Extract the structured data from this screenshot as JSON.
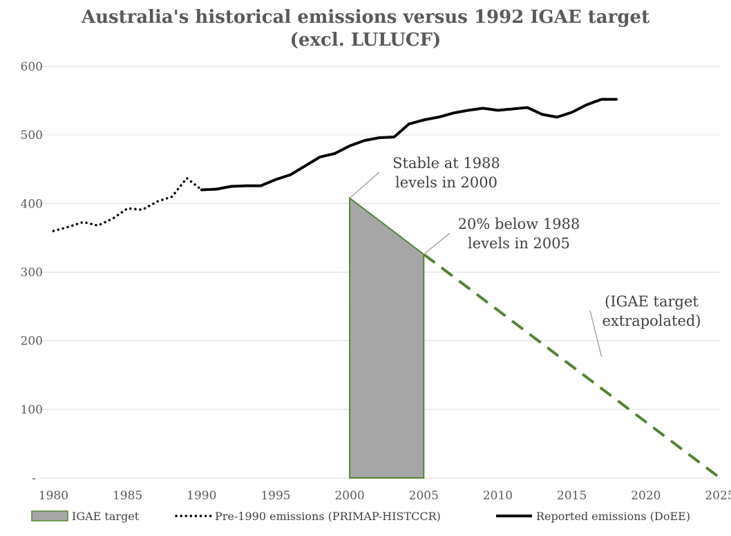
{
  "chart_data": {
    "type": "line",
    "title_lines": [
      "Australia's historical emissions versus 1992 IGAE target",
      "(excl. LULUCF)"
    ],
    "xlim": [
      1979,
      2025
    ],
    "ylim": [
      0,
      600
    ],
    "x_ticks": [
      1980,
      1985,
      1990,
      1995,
      2000,
      2005,
      2010,
      2015,
      2020,
      2025
    ],
    "y_ticks": [
      600,
      500,
      400,
      300,
      200,
      100
    ],
    "y_zero_label": "-",
    "grid": "horizontal",
    "series": [
      {
        "name": "Pre-1990 emissions (PRIMAP-HISTCCR)",
        "style": "dotted",
        "color": "#000000",
        "points": [
          [
            1980,
            360
          ],
          [
            1981,
            366
          ],
          [
            1982,
            373
          ],
          [
            1983,
            368
          ],
          [
            1984,
            378
          ],
          [
            1985,
            393
          ],
          [
            1986,
            391
          ],
          [
            1987,
            403
          ],
          [
            1988,
            410
          ],
          [
            1989,
            437
          ],
          [
            1990,
            420
          ]
        ]
      },
      {
        "name": "Reported emissions (DoEE)",
        "style": "solid",
        "color": "#000000",
        "points": [
          [
            1990,
            420
          ],
          [
            1991,
            421
          ],
          [
            1992,
            425
          ],
          [
            1993,
            426
          ],
          [
            1994,
            426
          ],
          [
            1995,
            435
          ],
          [
            1996,
            442
          ],
          [
            1997,
            455
          ],
          [
            1998,
            468
          ],
          [
            1999,
            473
          ],
          [
            2000,
            484
          ],
          [
            2001,
            492
          ],
          [
            2002,
            496
          ],
          [
            2003,
            497
          ],
          [
            2004,
            516
          ],
          [
            2005,
            522
          ],
          [
            2006,
            526
          ],
          [
            2007,
            532
          ],
          [
            2008,
            536
          ],
          [
            2009,
            539
          ],
          [
            2010,
            536
          ],
          [
            2011,
            538
          ],
          [
            2012,
            540
          ],
          [
            2013,
            530
          ],
          [
            2014,
            526
          ],
          [
            2015,
            533
          ],
          [
            2016,
            544
          ],
          [
            2017,
            552
          ],
          [
            2018,
            552
          ]
        ]
      },
      {
        "name": "IGAE target",
        "style": "area",
        "color": "#a6a6a6",
        "stroke": "#548235",
        "points": [
          [
            2000,
            408
          ],
          [
            2005,
            326
          ]
        ]
      },
      {
        "name": "IGAE target extrapolated",
        "style": "dashed",
        "color": "#548235",
        "points": [
          [
            2005,
            326
          ],
          [
            2025,
            0
          ]
        ]
      }
    ],
    "annotations": [
      {
        "lines": [
          "Stable at 1988",
          "levels in 2000"
        ],
        "point": [
          2000,
          408
        ]
      },
      {
        "lines": [
          "20% below 1988",
          "levels in 2005"
        ],
        "point": [
          2005,
          326
        ]
      },
      {
        "lines": [
          "(IGAE target",
          "extrapolated)"
        ],
        "point": [
          2017,
          177
        ]
      }
    ],
    "legend": [
      {
        "label": "IGAE target",
        "style": "area"
      },
      {
        "label": "Pre-1990 emissions (PRIMAP-HISTCCR)",
        "style": "dotted"
      },
      {
        "label": "Reported emissions (DoEE)",
        "style": "solid"
      }
    ],
    "legend_position": "bottom"
  }
}
